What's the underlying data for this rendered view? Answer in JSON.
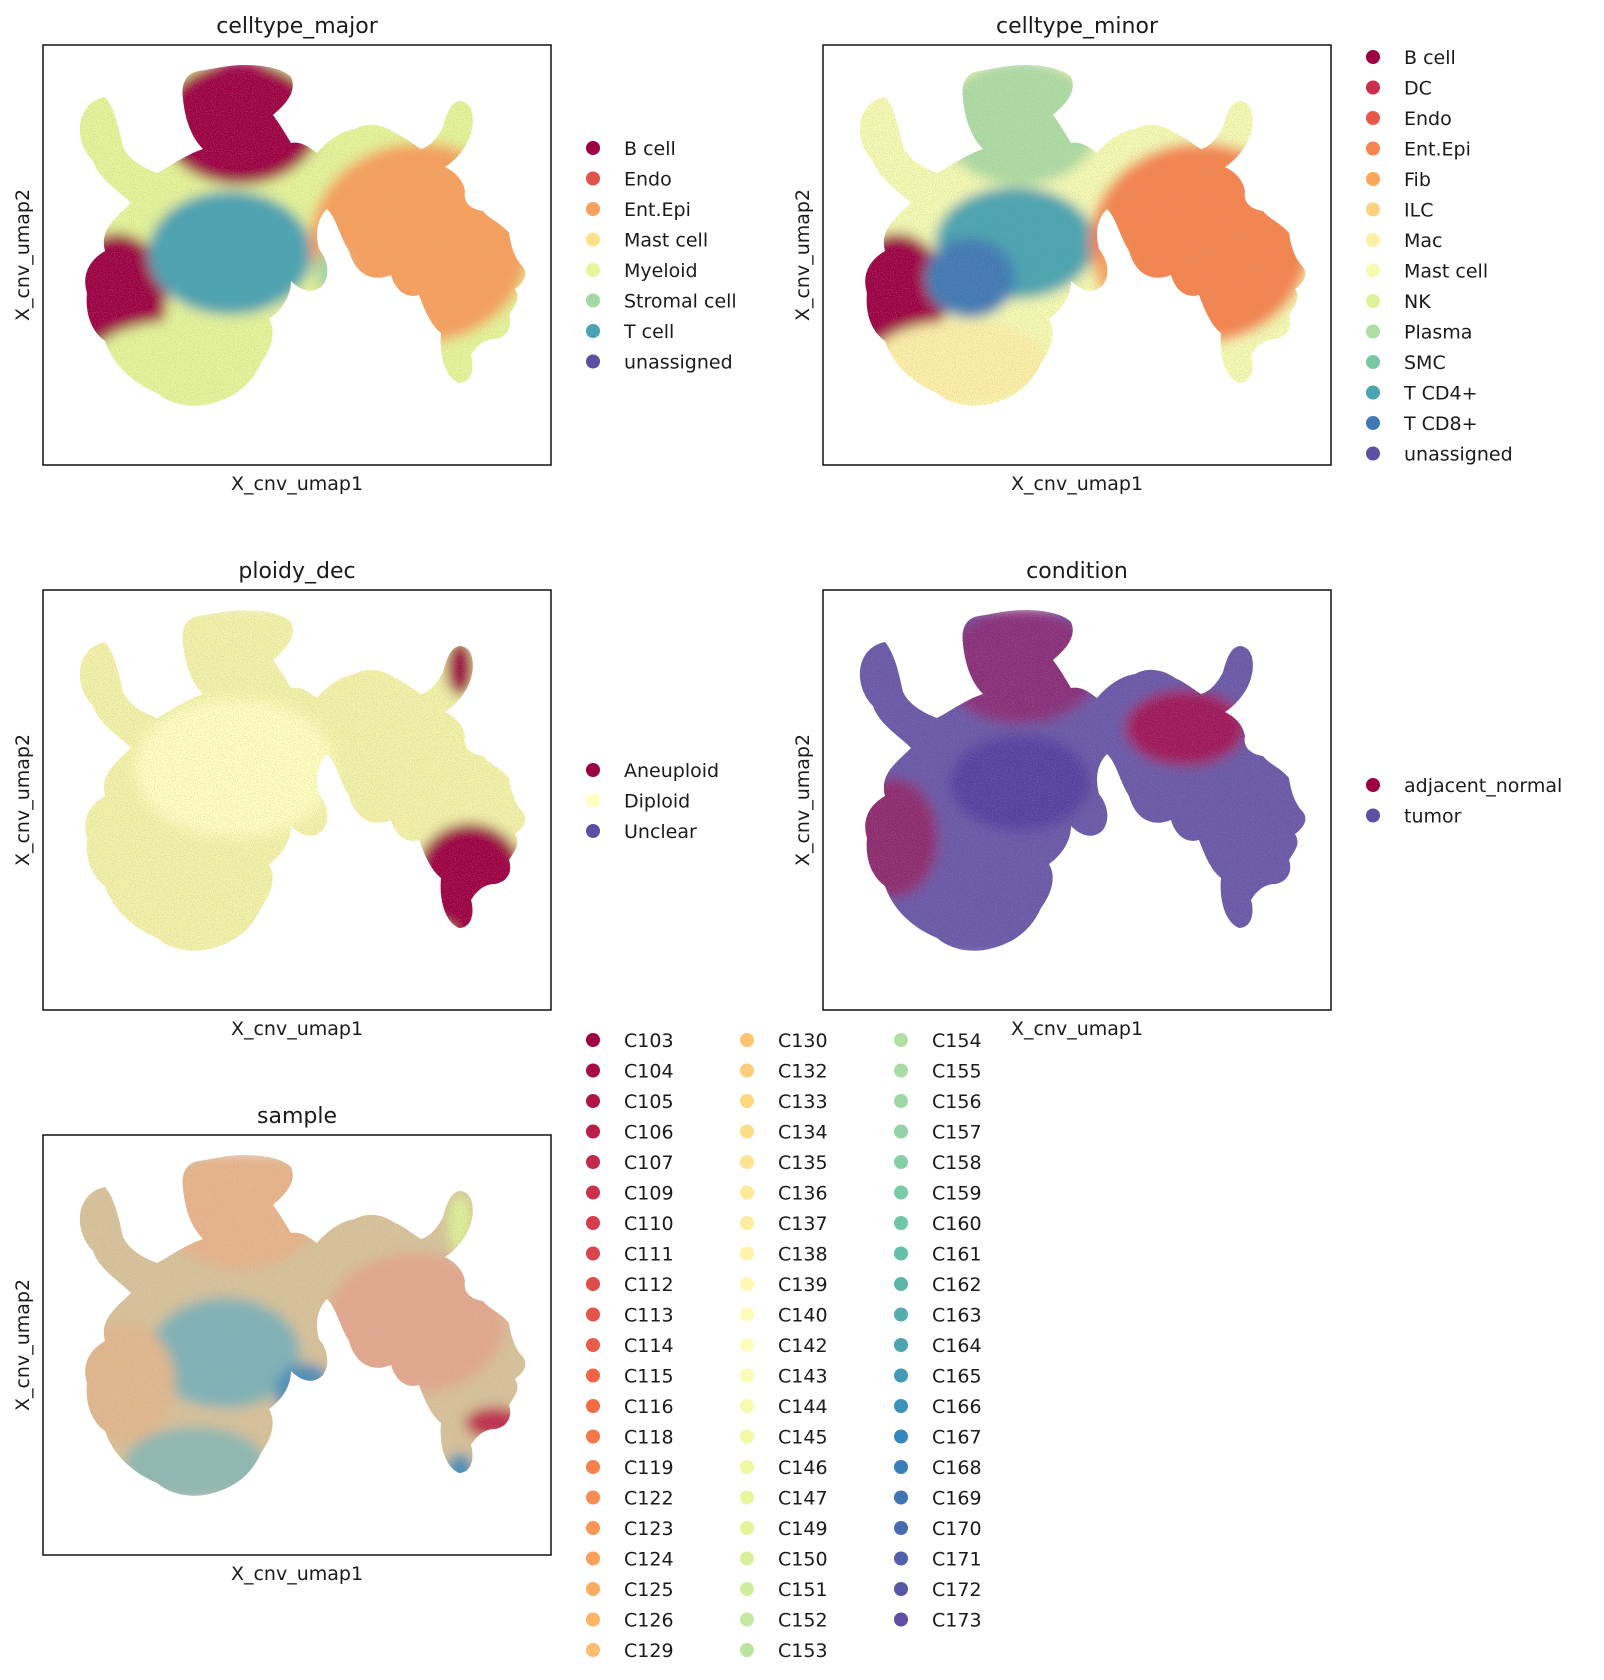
{
  "chart_data": [
    {
      "type": "scatter",
      "title": "celltype_major",
      "xlabel": "X_cnv_umap1",
      "ylabel": "X_cnv_umap2",
      "legend_position": "right",
      "categories": [
        {
          "name": "B cell",
          "color": "#9e0142"
        },
        {
          "name": "Endo",
          "color": "#e1524a"
        },
        {
          "name": "Ent.Epi",
          "color": "#f9a05c"
        },
        {
          "name": "Mast cell",
          "color": "#fee08b"
        },
        {
          "name": "Myeloid",
          "color": "#e6f598"
        },
        {
          "name": "Stromal cell",
          "color": "#a4d9a4"
        },
        {
          "name": "T cell",
          "color": "#4aa3b2"
        },
        {
          "name": "unassigned",
          "color": "#5e4fa2"
        }
      ]
    },
    {
      "type": "scatter",
      "title": "celltype_minor",
      "xlabel": "X_cnv_umap1",
      "ylabel": "X_cnv_umap2",
      "legend_position": "right",
      "categories": [
        {
          "name": "B cell",
          "color": "#9e0142"
        },
        {
          "name": "DC",
          "color": "#cc2f4c"
        },
        {
          "name": "Endo",
          "color": "#e8574a"
        },
        {
          "name": "Ent.Epi",
          "color": "#f7844e"
        },
        {
          "name": "Fib",
          "color": "#fca55d"
        },
        {
          "name": "ILC",
          "color": "#fdd17f"
        },
        {
          "name": "Mac",
          "color": "#fef0a7"
        },
        {
          "name": "Mast cell",
          "color": "#f6fbb2"
        },
        {
          "name": "NK",
          "color": "#dff299"
        },
        {
          "name": "Plasma",
          "color": "#aedca3"
        },
        {
          "name": "SMC",
          "color": "#77c8a4"
        },
        {
          "name": "T CD4+",
          "color": "#4aa4b1"
        },
        {
          "name": "T CD8+",
          "color": "#3f79b5"
        },
        {
          "name": "unassigned",
          "color": "#5e4fa2"
        }
      ]
    },
    {
      "type": "scatter",
      "title": "ploidy_dec",
      "xlabel": "X_cnv_umap1",
      "ylabel": "X_cnv_umap2",
      "legend_position": "right",
      "categories": [
        {
          "name": "Aneuploid",
          "color": "#9e0142"
        },
        {
          "name": "Diploid",
          "color": "#ffffbf"
        },
        {
          "name": "Unclear",
          "color": "#5e4fa2"
        }
      ]
    },
    {
      "type": "scatter",
      "title": "condition",
      "xlabel": "X_cnv_umap1",
      "ylabel": "X_cnv_umap2",
      "legend_position": "right",
      "categories": [
        {
          "name": "adjacent_normal",
          "color": "#9e0142"
        },
        {
          "name": "tumor",
          "color": "#5e4fa2"
        }
      ]
    },
    {
      "type": "scatter",
      "title": "sample",
      "xlabel": "X_cnv_umap1",
      "ylabel": "X_cnv_umap2",
      "legend_position": "right",
      "colormap": "Spectral",
      "categories": [
        "C103",
        "C104",
        "C105",
        "C106",
        "C107",
        "C109",
        "C110",
        "C111",
        "C112",
        "C113",
        "C114",
        "C115",
        "C116",
        "C118",
        "C119",
        "C122",
        "C123",
        "C124",
        "C125",
        "C126",
        "C129",
        "C130",
        "C132",
        "C133",
        "C134",
        "C135",
        "C136",
        "C137",
        "C138",
        "C139",
        "C140",
        "C142",
        "C143",
        "C144",
        "C145",
        "C146",
        "C147",
        "C149",
        "C150",
        "C151",
        "C152",
        "C153",
        "C154",
        "C155",
        "C156",
        "C157",
        "C158",
        "C159",
        "C160",
        "C161",
        "C162",
        "C163",
        "C164",
        "C165",
        "C166",
        "C167",
        "C168",
        "C169",
        "C170",
        "C171",
        "C172",
        "C173"
      ]
    }
  ]
}
